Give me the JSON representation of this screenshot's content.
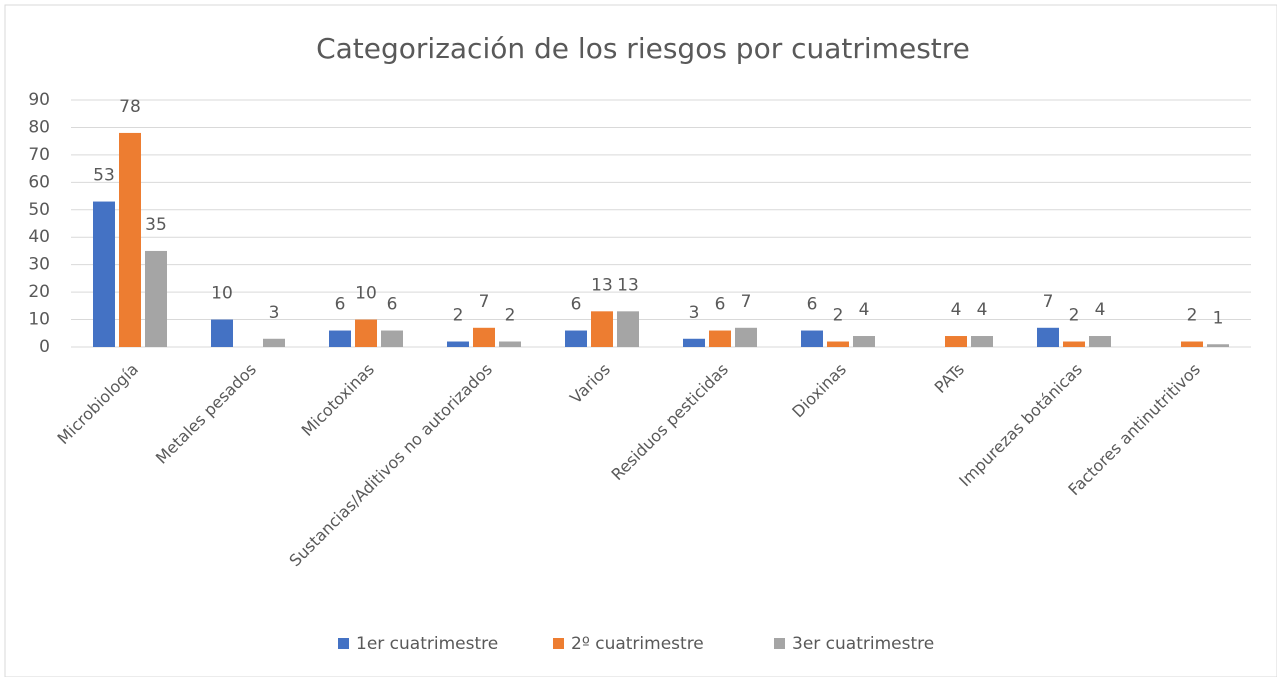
{
  "chart_data": {
    "type": "bar",
    "title": "Categorización de los riesgos por cuatrimestre",
    "categories": [
      "Microbiología",
      "Metales pesados",
      "Micotoxinas",
      "Sustancias/Aditivos no autorizados",
      "Varios",
      "Residuos pesticidas",
      "Dioxinas",
      "PATs",
      "Impurezas botánicas",
      "Factores antinutritivos"
    ],
    "series": [
      {
        "name": "1er cuatrimestre",
        "color": "#4472c4",
        "values": [
          53,
          10,
          6,
          2,
          6,
          3,
          6,
          null,
          7,
          null
        ]
      },
      {
        "name": "2º cuatrimestre",
        "color": "#ed7d31",
        "values": [
          78,
          null,
          10,
          7,
          13,
          6,
          2,
          4,
          2,
          2
        ]
      },
      {
        "name": "3er cuatrimestre",
        "color": "#a5a5a5",
        "values": [
          35,
          3,
          6,
          2,
          13,
          7,
          4,
          4,
          4,
          1
        ]
      }
    ],
    "ylim": [
      0,
      90
    ],
    "yticks": [
      0,
      10,
      20,
      30,
      40,
      50,
      60,
      70,
      80,
      90
    ],
    "grid": true,
    "legend": "bottom"
  }
}
